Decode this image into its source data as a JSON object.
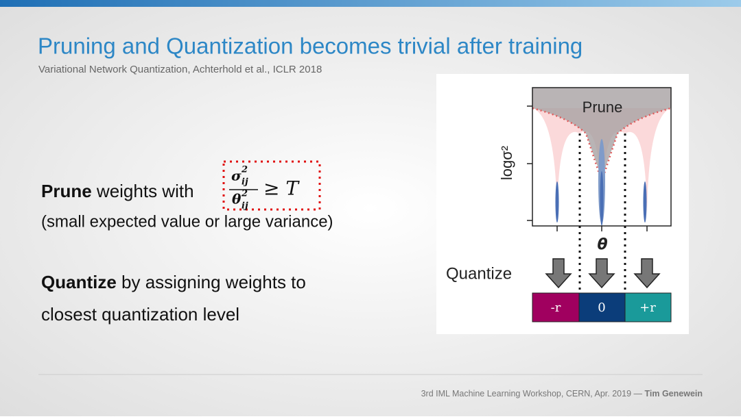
{
  "header": {
    "title": "Pruning and Quantization becomes trivial after training",
    "subtitle": "Variational Network Quantization, Achterhold et al., ICLR 2018"
  },
  "body": {
    "prune_bold": "Prune",
    "prune_text": "weights with",
    "formula": {
      "numerator": "σ",
      "numerator_sup": "2",
      "numerator_sub": "ij",
      "denominator": "θ",
      "denominator_sup": "2",
      "denominator_sub": "ij",
      "relation": "≥ T"
    },
    "prune_note": "(small expected value or large variance)",
    "quantize_bold": "Quantize",
    "quantize_lines": [
      "by assigning weights to",
      "closest quantization level"
    ]
  },
  "figure": {
    "region_label": "Prune",
    "y_label": "logσ²",
    "x_label": "θ",
    "step_label": "Quantize",
    "levels": [
      "-r",
      "0",
      "+r"
    ]
  },
  "footer": {
    "event": "3rd IML Machine Learning Workshop, CERN, Apr. 2019 —",
    "author": "Tim Genewein"
  }
}
